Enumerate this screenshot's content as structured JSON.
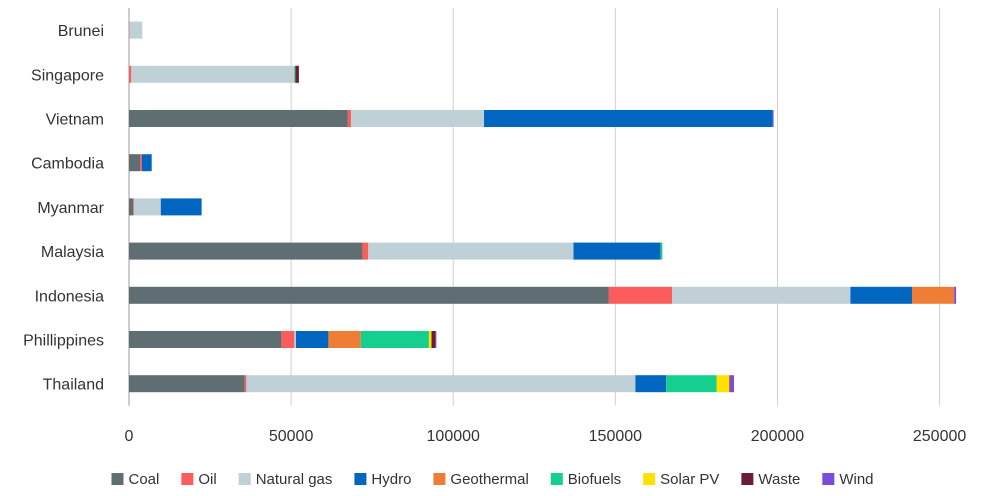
{
  "chart_data": {
    "type": "bar",
    "orientation": "horizontal",
    "stacked": true,
    "title": "",
    "xlabel": "",
    "ylabel": "",
    "xlim": [
      0,
      260000
    ],
    "xticks": [
      0,
      50000,
      100000,
      150000,
      200000,
      250000
    ],
    "grid": "vertical",
    "legend_position": "bottom",
    "categories": [
      "Brunei",
      "Singapore",
      "Vietnam",
      "Cambodia",
      "Myanmar",
      "Malaysia",
      "Indonesia",
      "Phillippines",
      "Thailand"
    ],
    "series": [
      {
        "name": "Coal",
        "color": "#5f6e73",
        "values": [
          0,
          0,
          67500,
          3500,
          1300,
          72000,
          148000,
          47000,
          35700
        ]
      },
      {
        "name": "Oil",
        "color": "#fc5c5c",
        "values": [
          100,
          700,
          1000,
          500,
          200,
          1800,
          19500,
          4000,
          500
        ]
      },
      {
        "name": "Natural gas",
        "color": "#bfd0d6",
        "values": [
          4000,
          50300,
          41000,
          0,
          8300,
          63300,
          55000,
          500,
          120000
        ]
      },
      {
        "name": "Hydro",
        "color": "#0066bf",
        "values": [
          0,
          0,
          89000,
          3000,
          12600,
          26800,
          19000,
          10000,
          9500
        ]
      },
      {
        "name": "Geothermal",
        "color": "#ef7d35",
        "values": [
          0,
          0,
          0,
          0,
          0,
          0,
          13000,
          10000,
          0
        ]
      },
      {
        "name": "Biofuels",
        "color": "#15cf8f",
        "values": [
          0,
          300,
          0,
          0,
          0,
          600,
          0,
          21000,
          15500
        ]
      },
      {
        "name": "Solar PV",
        "color": "#ffe100",
        "values": [
          0,
          0,
          0,
          0,
          0,
          0,
          0,
          800,
          4000
        ]
      },
      {
        "name": "Waste",
        "color": "#6b1d33",
        "values": [
          0,
          1100,
          0,
          0,
          0,
          0,
          0,
          1200,
          200
        ]
      },
      {
        "name": "Wind",
        "color": "#7a4dd8",
        "values": [
          0,
          0,
          300,
          0,
          0,
          0,
          600,
          300,
          1200
        ]
      }
    ]
  }
}
